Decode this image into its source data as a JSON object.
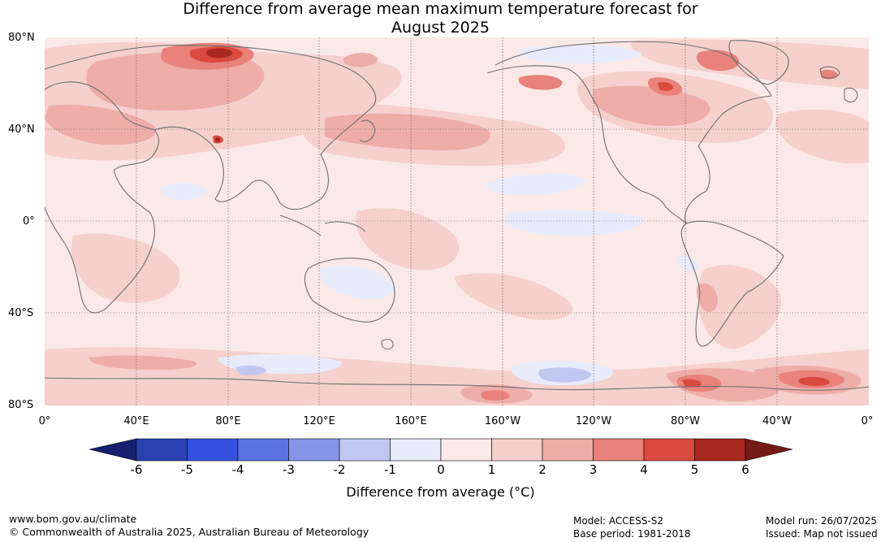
{
  "title": {
    "line1": "Difference from average mean maximum temperature forecast for",
    "line2": "August 2025"
  },
  "map": {
    "projection": "equirectangular",
    "lon_range": [
      0,
      360
    ],
    "lat_range": [
      -80,
      80
    ],
    "lat_ticks": [
      "80°N",
      "40°N",
      "0°",
      "40°S",
      "80°S"
    ],
    "lon_ticks": [
      "0°",
      "40°E",
      "80°E",
      "120°E",
      "160°E",
      "160°W",
      "120°W",
      "80°W",
      "40°W",
      "0°"
    ],
    "grid": true,
    "background_anomaly_class": "0 to 1",
    "regions": [
      {
        "name": "central Asia warm anomaly",
        "class": "3 to 4"
      },
      {
        "name": "Kara Sea warm anomaly",
        "class": "5 to 6"
      },
      {
        "name": "North Pacific warm band",
        "class": "2 to 3"
      },
      {
        "name": "Alaska warm anomaly",
        "class": "4 to 5"
      },
      {
        "name": "northern Canada warm anomaly",
        "class": "4 to 5"
      },
      {
        "name": "Greenland warm anomaly",
        "class": "4 to 5"
      },
      {
        "name": "Southern Ocean warm anomaly 80W",
        "class": "4 to 5"
      },
      {
        "name": "Southern Ocean warm anomaly 20W",
        "class": "4 to 5"
      },
      {
        "name": "Southern Ocean cool anomaly 150W",
        "class": "-2 to -1"
      },
      {
        "name": "eastern equatorial Pacific cool anomaly",
        "class": "-1 to 0"
      },
      {
        "name": "northern Australia cool anomaly",
        "class": "-1 to 0"
      }
    ]
  },
  "colorbar": {
    "ticks": [
      "-6",
      "-5",
      "-4",
      "-3",
      "-2",
      "-1",
      "0",
      "1",
      "2",
      "3",
      "4",
      "5",
      "6"
    ],
    "colors": [
      "#2a41b3",
      "#3350e0",
      "#5a73e3",
      "#8795e8",
      "#c0c8f2",
      "#e8ebfa",
      "#fbe9e7",
      "#f5d0cc",
      "#eeada8",
      "#e8827b",
      "#da4a3f",
      "#a8271f"
    ],
    "under_color": "#17206e",
    "over_color": "#761a16",
    "label": "Difference from average (°C)"
  },
  "footer": {
    "url": "www.bom.gov.au/climate",
    "copyright": "© Commonwealth of Australia 2025, Australian Bureau of Meteorology",
    "model": "Model: ACCESS-S2",
    "base_period": "Base period: 1981-2018",
    "model_run": "Model run: 26/07/2025",
    "issued": "Issued: Map not issued"
  }
}
